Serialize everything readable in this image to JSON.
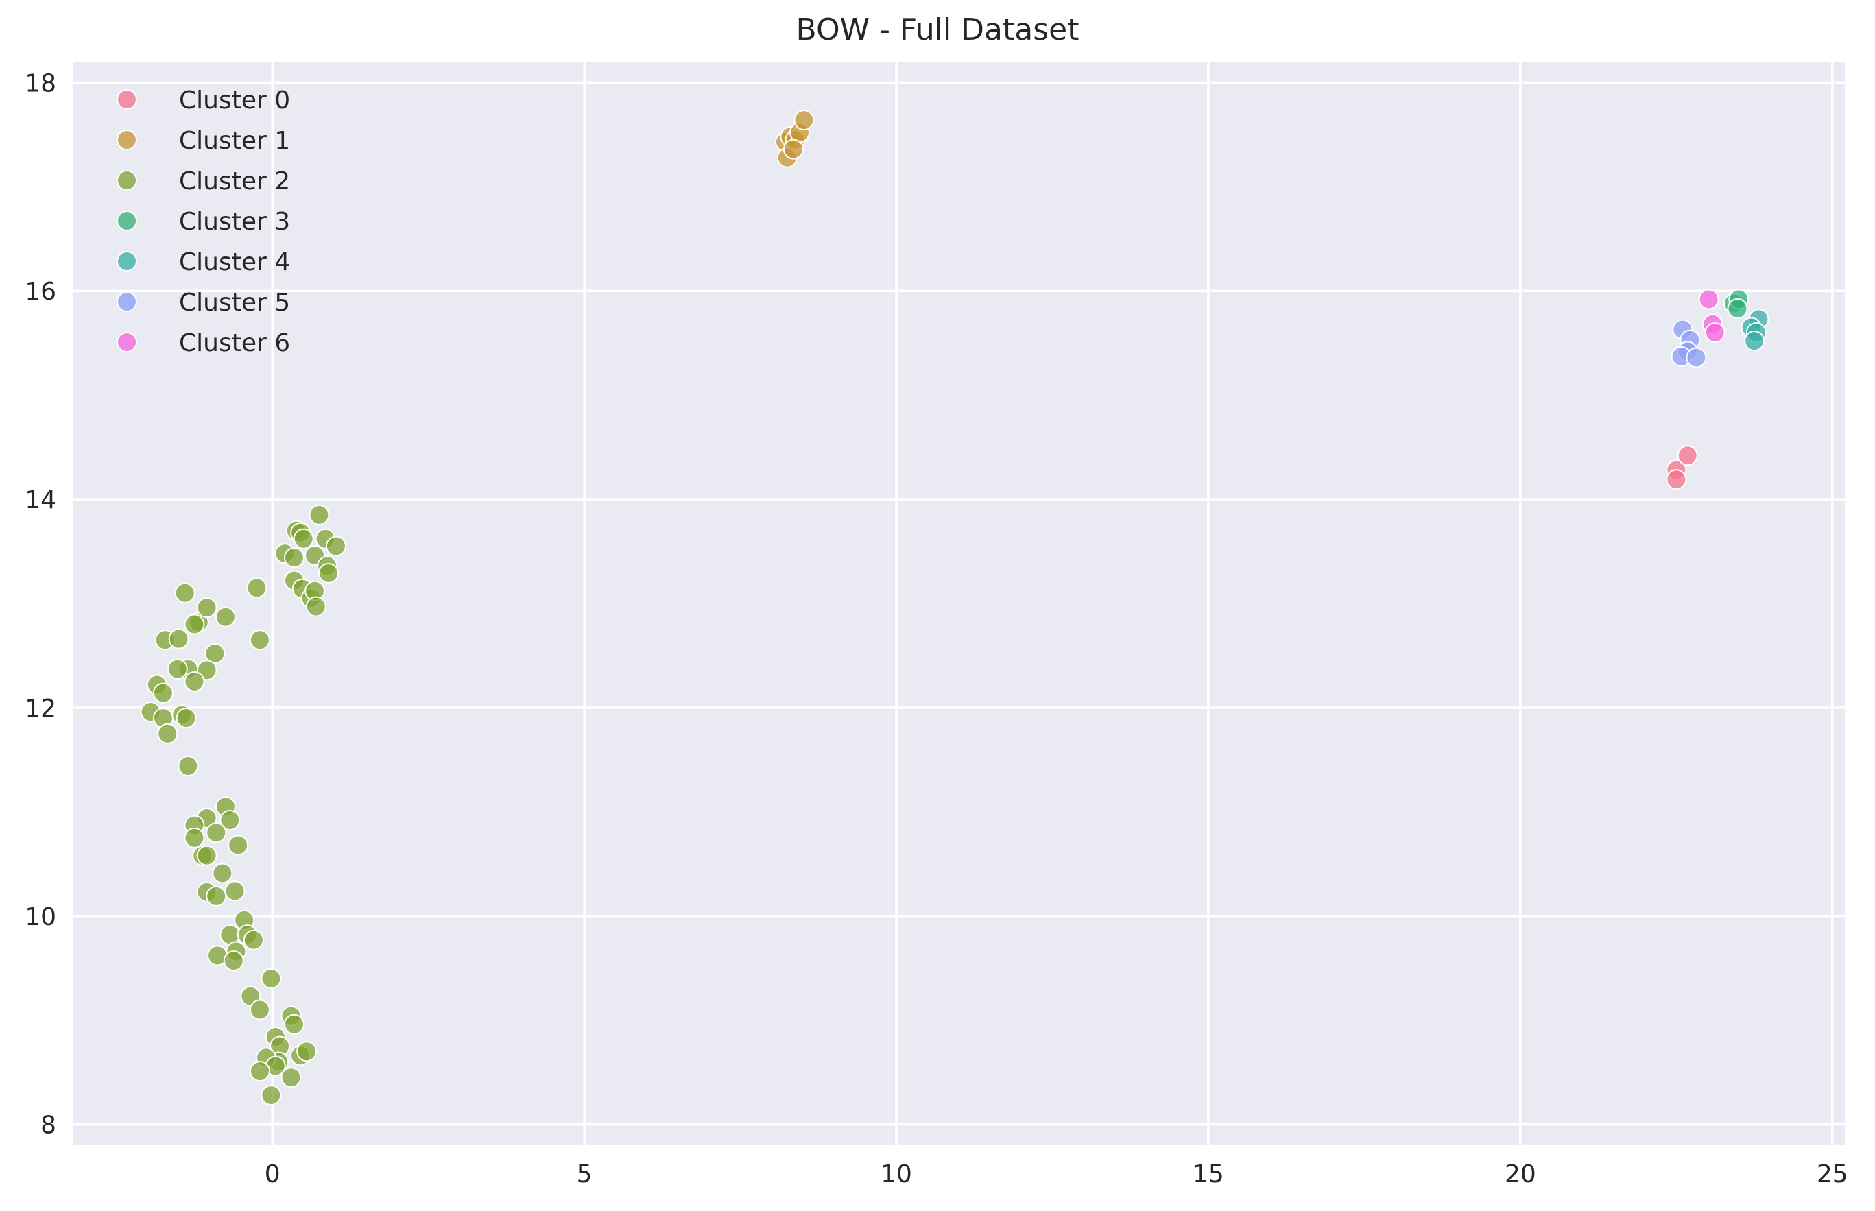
{
  "chart_data": {
    "type": "scatter",
    "title": "BOW - Full Dataset",
    "xlabel": "",
    "ylabel": "",
    "xlim": [
      -3.2,
      25.2
    ],
    "ylim": [
      7.8,
      18.2
    ],
    "xticks": [
      0,
      5,
      10,
      15,
      20,
      25
    ],
    "yticks": [
      8,
      10,
      12,
      14,
      16,
      18
    ],
    "grid": true,
    "legend_position": "top-left",
    "background_color": "#eaeaf2",
    "series": [
      {
        "name": "Cluster 0",
        "color": "#f77189",
        "x": [
          22.5,
          22.5,
          22.68
        ],
        "y": [
          14.28,
          14.19,
          14.42
        ]
      },
      {
        "name": "Cluster 1",
        "color": "#c69432",
        "x": [
          8.22,
          8.3,
          8.38,
          8.45,
          8.52,
          8.25,
          8.35
        ],
        "y": [
          17.43,
          17.48,
          17.45,
          17.52,
          17.64,
          17.28,
          17.36
        ]
      },
      {
        "name": "Cluster 2",
        "color": "#7ea331",
        "x": [
          0.38,
          0.45,
          0.75,
          0.2,
          0.35,
          0.5,
          0.68,
          0.85,
          1.02,
          0.88,
          0.9,
          0.35,
          0.48,
          0.62,
          0.68,
          0.7,
          -0.25,
          -0.2,
          -1.4,
          -1.72,
          -1.5,
          -1.18,
          -1.25,
          -1.05,
          -0.75,
          -0.92,
          -1.05,
          -1.35,
          -1.52,
          -1.25,
          -1.85,
          -1.75,
          -1.95,
          -1.75,
          -1.45,
          -1.38,
          -1.68,
          -1.35,
          -0.75,
          -1.05,
          -0.68,
          -1.25,
          -1.25,
          -0.9,
          -0.55,
          -1.12,
          -1.05,
          -0.8,
          -1.05,
          -0.9,
          -0.6,
          -0.45,
          -0.68,
          -0.4,
          -0.3,
          -0.58,
          -0.88,
          -0.62,
          -0.02,
          -0.35,
          -0.2,
          0.3,
          0.35,
          0.05,
          0.12,
          0.1,
          0.45,
          0.55,
          -0.1,
          0.05,
          -0.2,
          0.3,
          -0.02
        ],
        "y": [
          13.7,
          13.68,
          13.85,
          13.48,
          13.44,
          13.62,
          13.46,
          13.62,
          13.55,
          13.36,
          13.29,
          13.22,
          13.14,
          13.05,
          13.12,
          12.97,
          13.15,
          12.65,
          13.1,
          12.65,
          12.66,
          12.82,
          12.8,
          12.96,
          12.87,
          12.52,
          12.36,
          12.37,
          12.37,
          12.25,
          12.22,
          12.14,
          11.96,
          11.9,
          11.93,
          11.9,
          11.75,
          11.44,
          11.05,
          10.94,
          10.92,
          10.87,
          10.75,
          10.8,
          10.68,
          10.58,
          10.58,
          10.41,
          10.23,
          10.19,
          10.24,
          9.96,
          9.82,
          9.82,
          9.77,
          9.66,
          9.62,
          9.57,
          9.4,
          9.23,
          9.1,
          9.04,
          8.96,
          8.84,
          8.75,
          8.6,
          8.66,
          8.7,
          8.64,
          8.56,
          8.51,
          8.45,
          8.28
        ]
      },
      {
        "name": "Cluster 3",
        "color": "#33b07a",
        "x": [
          23.42,
          23.5,
          23.48
        ],
        "y": [
          15.88,
          15.92,
          15.83
        ]
      },
      {
        "name": "Cluster 4",
        "color": "#36ada4",
        "x": [
          23.82,
          23.7,
          23.78,
          23.75
        ],
        "y": [
          15.73,
          15.65,
          15.6,
          15.52
        ]
      },
      {
        "name": "Cluster 5",
        "color": "#8a9df6",
        "x": [
          22.6,
          22.72,
          22.68,
          22.58,
          22.82
        ],
        "y": [
          15.63,
          15.53,
          15.42,
          15.37,
          15.36
        ]
      },
      {
        "name": "Cluster 6",
        "color": "#f461dd",
        "x": [
          23.02,
          23.08,
          23.12
        ],
        "y": [
          15.92,
          15.68,
          15.6
        ]
      }
    ]
  }
}
